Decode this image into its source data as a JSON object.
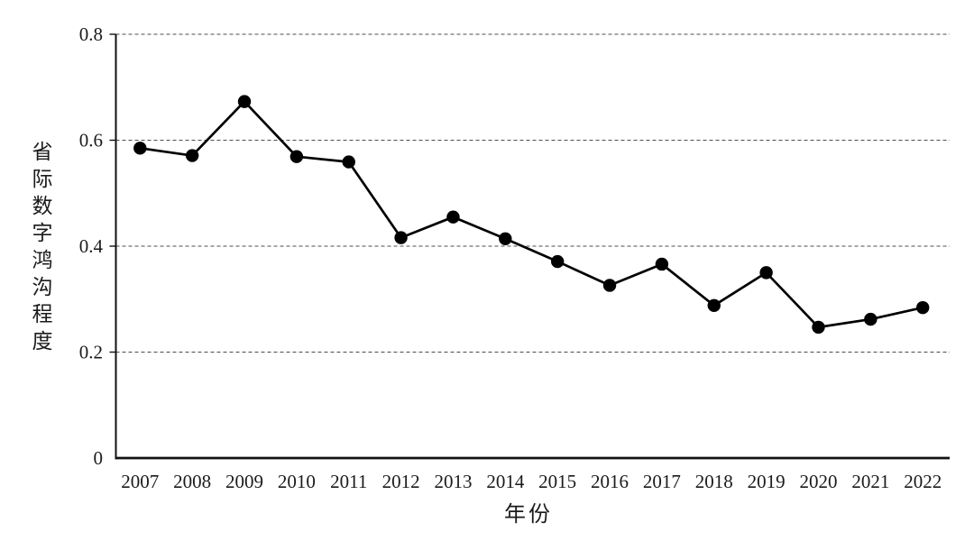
{
  "chart_data": {
    "type": "line",
    "title": "",
    "categories": [
      "2007",
      "2008",
      "2009",
      "2010",
      "2011",
      "2012",
      "2013",
      "2014",
      "2015",
      "2016",
      "2017",
      "2018",
      "2019",
      "2020",
      "2021",
      "2022"
    ],
    "series": [
      {
        "name": "省际数字鸿沟程度",
        "values": [
          0.585,
          0.571,
          0.673,
          0.569,
          0.559,
          0.416,
          0.455,
          0.414,
          0.371,
          0.326,
          0.366,
          0.288,
          0.35,
          0.247,
          0.262,
          0.284
        ]
      }
    ],
    "xlabel": "年份",
    "ylabel": "省际数字鸿沟程度",
    "ylim": [
      0,
      0.8
    ],
    "ytick_labels": [
      "0",
      "0.2",
      "0.4",
      "0.6",
      "0.8"
    ],
    "grid": "horizontal-dashed",
    "legend_position": "none",
    "line_color": "#000000",
    "marker": "filled-circle",
    "marker_color": "#000000",
    "gridline_color": "#4d4d4d",
    "axis_color": "#111111",
    "background": "#ffffff"
  }
}
